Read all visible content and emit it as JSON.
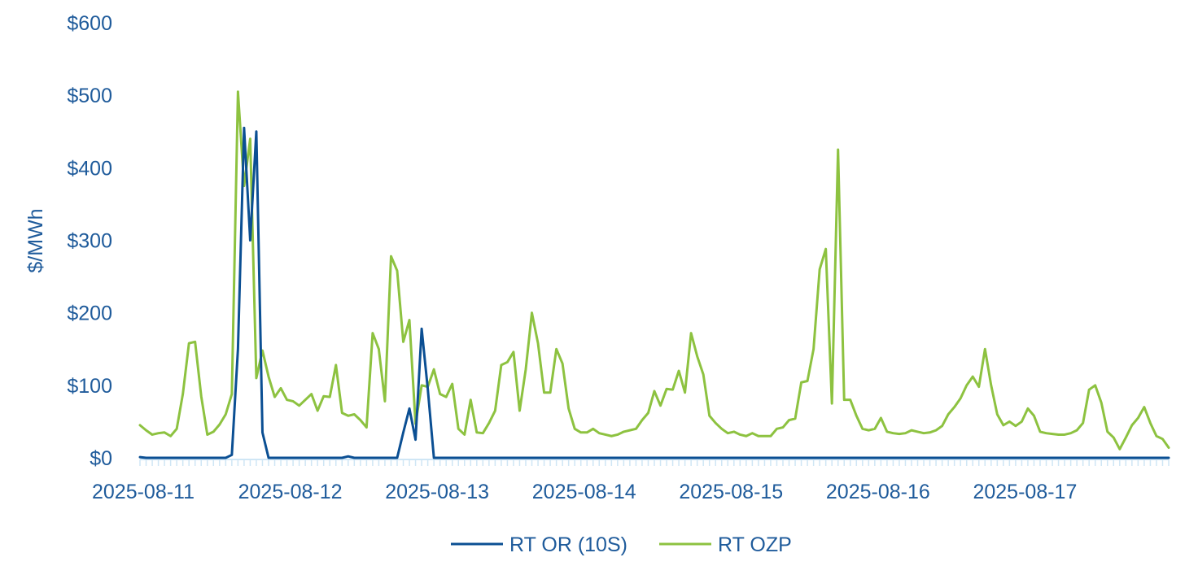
{
  "chart_data": {
    "type": "line",
    "title": "",
    "xlabel": "",
    "ylabel": "$/MWh",
    "ylim": [
      0,
      600
    ],
    "yticks": [
      0,
      100,
      200,
      300,
      400,
      500,
      600
    ],
    "ytick_labels": [
      "$0",
      "$100",
      "$200",
      "$300",
      "$400",
      "$500",
      "$600"
    ],
    "x_tick_labels": [
      "2025-08-11",
      "2025-08-12",
      "2025-08-13",
      "2025-08-14",
      "2025-08-15",
      "2025-08-16",
      "2025-08-17"
    ],
    "x_tick_positions_hours": [
      0,
      24,
      48,
      72,
      96,
      120,
      144
    ],
    "x_range_hours": [
      0,
      168
    ],
    "x_step_hours": 1,
    "grid": false,
    "legend_position": "bottom-center",
    "series": [
      {
        "name": "RT OR (10S)",
        "color": "#0b4f93",
        "values": [
          1,
          0,
          0,
          0,
          0,
          0,
          0,
          0,
          0,
          0,
          0,
          0,
          0,
          0,
          0,
          4,
          150,
          455,
          300,
          450,
          35,
          0,
          0,
          0,
          0,
          0,
          0,
          0,
          0,
          0,
          0,
          0,
          0,
          0,
          2,
          0,
          0,
          0,
          0,
          0,
          0,
          0,
          0,
          35,
          68,
          25,
          178,
          95,
          0,
          0,
          0,
          0,
          0,
          0,
          0,
          0,
          0,
          0,
          0,
          0,
          0,
          0,
          0,
          0,
          0,
          0,
          0,
          0,
          0,
          0,
          0,
          0,
          0,
          0,
          0,
          0,
          0,
          0,
          0,
          0,
          0,
          0,
          0,
          0,
          0,
          0,
          0,
          0,
          0,
          0,
          0,
          0,
          0,
          0,
          0,
          0,
          0,
          0,
          0,
          0,
          0,
          0,
          0,
          0,
          0,
          0,
          0,
          0,
          0,
          0,
          0,
          0,
          0,
          0,
          0,
          0,
          0,
          0,
          0,
          0,
          0,
          0,
          0,
          0,
          0,
          0,
          0,
          0,
          0,
          0,
          0,
          0,
          0,
          0,
          0,
          0,
          0,
          0,
          0,
          0,
          0,
          0,
          0,
          0,
          0,
          0,
          0,
          0,
          0,
          0,
          0,
          0,
          0,
          0,
          0,
          0,
          0,
          0,
          0,
          0,
          0,
          0,
          0,
          0,
          0,
          0,
          0,
          0,
          0
        ]
      },
      {
        "name": "RT OZP",
        "color": "#8dc240",
        "values": [
          45,
          38,
          32,
          34,
          35,
          30,
          40,
          88,
          158,
          160,
          85,
          32,
          36,
          46,
          60,
          88,
          505,
          375,
          440,
          110,
          148,
          112,
          84,
          96,
          80,
          78,
          72,
          80,
          88,
          65,
          85,
          84,
          128,
          62,
          58,
          60,
          52,
          42,
          172,
          150,
          78,
          278,
          258,
          160,
          190,
          47,
          100,
          98,
          122,
          88,
          84,
          102,
          40,
          32,
          80,
          35,
          34,
          48,
          65,
          128,
          132,
          146,
          65,
          122,
          200,
          158,
          90,
          90,
          150,
          130,
          68,
          40,
          35,
          35,
          40,
          34,
          32,
          30,
          32,
          36,
          38,
          40,
          52,
          62,
          92,
          72,
          95,
          94,
          120,
          90,
          172,
          140,
          115,
          58,
          48,
          40,
          34,
          36,
          32,
          30,
          34,
          30,
          30,
          30,
          40,
          42,
          52,
          54,
          104,
          106,
          150,
          260,
          288,
          75,
          425,
          80,
          80,
          58,
          40,
          38,
          40,
          55,
          36,
          34,
          33,
          34,
          38,
          36,
          34,
          35,
          38,
          44,
          60,
          70,
          82,
          100,
          112,
          98,
          150,
          100,
          60,
          45,
          50,
          44,
          50,
          68,
          58,
          36,
          34,
          33,
          32,
          32,
          34,
          38,
          48,
          94,
          100,
          76,
          36,
          28,
          12,
          28,
          45,
          55,
          70,
          48,
          30,
          26,
          14
        ]
      }
    ]
  }
}
